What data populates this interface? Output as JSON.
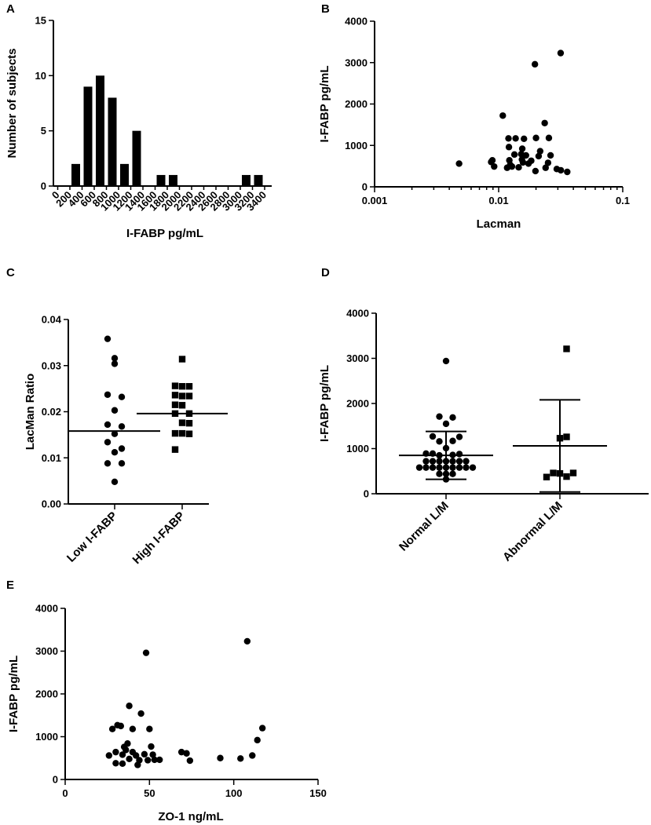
{
  "chart_data": [
    {
      "panel": "A",
      "type": "bar",
      "xlabel": "I-FABP pg/mL",
      "ylabel": "Number of subjects",
      "ylim": [
        0,
        15
      ],
      "yticks": [
        "0",
        "5",
        "10",
        "15"
      ],
      "categories": [
        "0",
        "200",
        "400",
        "600",
        "800",
        "1000",
        "1200",
        "1400",
        "1600",
        "1800",
        "2000",
        "2200",
        "2400",
        "2600",
        "2800",
        "3000",
        "3200",
        "3400"
      ],
      "values": [
        0,
        2,
        9,
        10,
        8,
        2,
        5,
        0,
        1,
        1,
        0,
        0,
        0,
        0,
        0,
        1,
        1,
        0
      ]
    },
    {
      "panel": "B",
      "type": "scatter",
      "xscale": "log",
      "xlabel": "Lacman",
      "ylabel": "I-FABP pg/mL",
      "xlim": [
        0.001,
        0.1
      ],
      "ylim": [
        0,
        4000
      ],
      "xticks": [
        "0.001",
        "0.01",
        "0.1"
      ],
      "yticks": [
        "0",
        "1000",
        "2000",
        "3000",
        "4000"
      ],
      "points": [
        [
          0.0048,
          560
        ],
        [
          0.0087,
          600
        ],
        [
          0.0089,
          640
        ],
        [
          0.0092,
          490
        ],
        [
          0.0108,
          1720
        ],
        [
          0.0117,
          460
        ],
        [
          0.012,
          1170
        ],
        [
          0.0121,
          960
        ],
        [
          0.0122,
          640
        ],
        [
          0.0124,
          530
        ],
        [
          0.0128,
          490
        ],
        [
          0.0134,
          780
        ],
        [
          0.0137,
          1170
        ],
        [
          0.0145,
          470
        ],
        [
          0.0152,
          790
        ],
        [
          0.0154,
          660
        ],
        [
          0.0155,
          920
        ],
        [
          0.0157,
          590
        ],
        [
          0.016,
          1160
        ],
        [
          0.0166,
          760
        ],
        [
          0.0174,
          560
        ],
        [
          0.0183,
          630
        ],
        [
          0.0196,
          2960
        ],
        [
          0.0198,
          380
        ],
        [
          0.02,
          1180
        ],
        [
          0.021,
          740
        ],
        [
          0.0216,
          860
        ],
        [
          0.0235,
          1540
        ],
        [
          0.0239,
          460
        ],
        [
          0.025,
          580
        ],
        [
          0.0254,
          1180
        ],
        [
          0.0262,
          760
        ],
        [
          0.0294,
          430
        ],
        [
          0.0316,
          3230
        ],
        [
          0.0317,
          400
        ],
        [
          0.0357,
          360
        ]
      ]
    },
    {
      "panel": "C",
      "type": "scatter",
      "xlabel": "",
      "ylabel": "LacMan Ratio",
      "ylim": [
        0,
        0.04
      ],
      "yticks": [
        "0.00",
        "0.01",
        "0.02",
        "0.03",
        "0.04"
      ],
      "categories": [
        "Low I-FABP",
        "High I-FABP"
      ],
      "series": [
        {
          "name": "Low I-FABP",
          "marker": "circle",
          "mean": 0.0158,
          "points": [
            [
              -1,
              0.0358
            ],
            [
              0,
              0.0316
            ],
            [
              0,
              0.0304
            ],
            [
              -1,
              0.0237
            ],
            [
              1,
              0.0232
            ],
            [
              0,
              0.0203
            ],
            [
              -1,
              0.0172
            ],
            [
              1,
              0.0168
            ],
            [
              0,
              0.0152
            ],
            [
              -1,
              0.0134
            ],
            [
              1,
              0.012
            ],
            [
              0,
              0.0112
            ],
            [
              -1,
              0.0088
            ],
            [
              1,
              0.0088
            ],
            [
              0,
              0.0048
            ]
          ]
        },
        {
          "name": "High I-FABP",
          "marker": "square",
          "mean": 0.0196,
          "points": [
            [
              0,
              0.0314
            ],
            [
              -1,
              0.0256
            ],
            [
              0,
              0.0255
            ],
            [
              1,
              0.0255
            ],
            [
              -1,
              0.0236
            ],
            [
              0,
              0.0234
            ],
            [
              1,
              0.0234
            ],
            [
              -1,
              0.0215
            ],
            [
              0,
              0.0214
            ],
            [
              -1,
              0.0196
            ],
            [
              1,
              0.0196
            ],
            [
              0,
              0.0176
            ],
            [
              1,
              0.0175
            ],
            [
              -1,
              0.0153
            ],
            [
              0,
              0.0153
            ],
            [
              1,
              0.0152
            ],
            [
              -1,
              0.0118
            ]
          ]
        }
      ]
    },
    {
      "panel": "D",
      "type": "scatter",
      "xlabel": "",
      "ylabel": "I-FABP pg/mL",
      "ylim": [
        0,
        4000
      ],
      "yticks": [
        "0",
        "1000",
        "2000",
        "3000",
        "4000"
      ],
      "categories": [
        "Normal L/M",
        "Abnormal L/M"
      ],
      "series": [
        {
          "name": "Normal L/M",
          "marker": "circle",
          "mean": 850,
          "sd_low": 320,
          "sd_high": 1380,
          "points": [
            [
              0,
              2940
            ],
            [
              -1,
              1710
            ],
            [
              1,
              1690
            ],
            [
              0,
              1550
            ],
            [
              -2,
              1270
            ],
            [
              2,
              1260
            ],
            [
              -1,
              1160
            ],
            [
              1,
              1170
            ],
            [
              0,
              1010
            ],
            [
              -3,
              890
            ],
            [
              -2,
              890
            ],
            [
              -1,
              850
            ],
            [
              1,
              860
            ],
            [
              2,
              880
            ],
            [
              -3,
              720
            ],
            [
              -2,
              720
            ],
            [
              -1,
              720
            ],
            [
              0,
              720
            ],
            [
              1,
              720
            ],
            [
              2,
              720
            ],
            [
              3,
              720
            ],
            [
              -4,
              580
            ],
            [
              -3,
              580
            ],
            [
              -2,
              580
            ],
            [
              -1,
              580
            ],
            [
              0,
              580
            ],
            [
              1,
              580
            ],
            [
              2,
              580
            ],
            [
              3,
              580
            ],
            [
              4,
              580
            ],
            [
              -1,
              440
            ],
            [
              0,
              440
            ],
            [
              1,
              440
            ],
            [
              0,
              320
            ]
          ]
        },
        {
          "name": "Abnormal L/M",
          "marker": "square",
          "mean": 1060,
          "sd_low": 40,
          "sd_high": 2080,
          "points": [
            [
              1,
              3210
            ],
            [
              0,
              1230
            ],
            [
              1,
              1260
            ],
            [
              -2,
              370
            ],
            [
              -1,
              460
            ],
            [
              0,
              450
            ],
            [
              1,
              380
            ],
            [
              2,
              460
            ]
          ]
        }
      ]
    },
    {
      "panel": "E",
      "type": "scatter",
      "xlabel": "ZO-1 ng/mL",
      "ylabel": "I-FABP pg/mL",
      "xlim": [
        0,
        150
      ],
      "ylim": [
        0,
        4000
      ],
      "xticks": [
        "0",
        "50",
        "100",
        "150"
      ],
      "yticks": [
        "0",
        "1000",
        "2000",
        "3000",
        "4000"
      ],
      "points": [
        [
          26,
          560
        ],
        [
          28,
          1180
        ],
        [
          30,
          640
        ],
        [
          30,
          380
        ],
        [
          31,
          1270
        ],
        [
          33,
          1250
        ],
        [
          34,
          370
        ],
        [
          34,
          580
        ],
        [
          35,
          760
        ],
        [
          36,
          690
        ],
        [
          37,
          840
        ],
        [
          38,
          1720
        ],
        [
          38,
          480
        ],
        [
          40,
          1180
        ],
        [
          40,
          640
        ],
        [
          42,
          560
        ],
        [
          43,
          340
        ],
        [
          44,
          450
        ],
        [
          45,
          1540
        ],
        [
          47,
          590
        ],
        [
          48,
          2960
        ],
        [
          49,
          450
        ],
        [
          50,
          1180
        ],
        [
          51,
          770
        ],
        [
          52,
          580
        ],
        [
          53,
          460
        ],
        [
          56,
          460
        ],
        [
          69,
          640
        ],
        [
          72,
          610
        ],
        [
          74,
          440
        ],
        [
          92,
          500
        ],
        [
          104,
          490
        ],
        [
          108,
          3230
        ],
        [
          111,
          560
        ],
        [
          114,
          920
        ],
        [
          117,
          1200
        ]
      ]
    }
  ]
}
